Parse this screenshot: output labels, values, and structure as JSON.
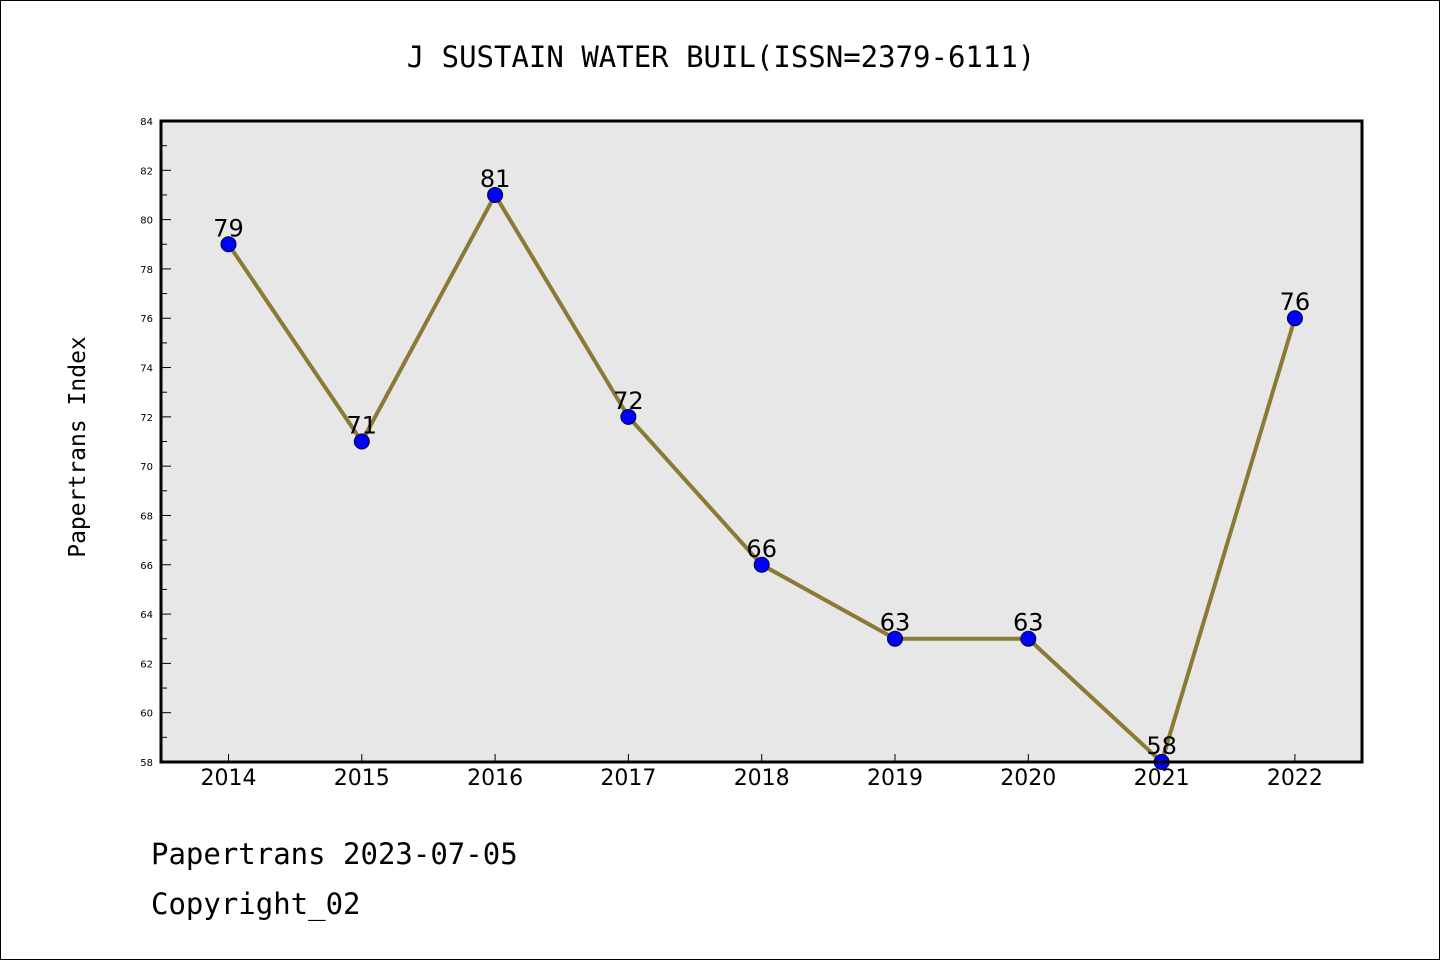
{
  "chart_data": {
    "type": "line",
    "title": "J SUSTAIN WATER BUIL(ISSN=2379-6111)",
    "xlabel": "",
    "ylabel": "Papertrans Index",
    "categories": [
      "2014",
      "2015",
      "2016",
      "2017",
      "2018",
      "2019",
      "2020",
      "2021",
      "2022"
    ],
    "series": [
      {
        "values": [
          79,
          71,
          81,
          72,
          66,
          63,
          63,
          58,
          76
        ]
      }
    ],
    "data_labels": [
      "79",
      "71",
      "81",
      "72",
      "66",
      "63",
      "63",
      "58",
      "76"
    ],
    "ylim": [
      58,
      84
    ],
    "yticks": [
      "58",
      "60",
      "62",
      "64",
      "66",
      "68",
      "70",
      "72",
      "74",
      "76",
      "78",
      "80",
      "82",
      "84"
    ],
    "grid": false,
    "legend": "none",
    "colors": {
      "line": "#8b7a36",
      "marker": "#0000ff",
      "plot_background": "#e7e7e7"
    }
  },
  "footer": {
    "date_text": "Papertrans 2023-07-05",
    "copyright_text": "Copyright_02"
  }
}
